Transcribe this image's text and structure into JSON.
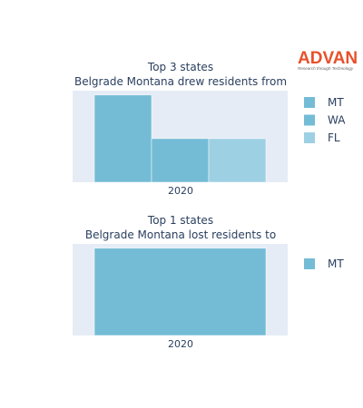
{
  "brand": {
    "name": "ADVAN",
    "tagline": "Research through Technology",
    "color": "#e8502a"
  },
  "colors": {
    "plot_bg": "#e5ecf6",
    "text": "#2a3f5f"
  },
  "chart_data": [
    {
      "type": "bar",
      "title_lines": [
        "Top 3 states",
        "Belgrade Montana drew residents from"
      ],
      "categories": [
        "2020"
      ],
      "xlabel": "",
      "ylabel": "",
      "series": [
        {
          "name": "MT",
          "values": [
            2
          ],
          "color": "#74bcd6"
        },
        {
          "name": "WA",
          "values": [
            1
          ],
          "color": "#74bcd6"
        },
        {
          "name": "FL",
          "values": [
            1
          ],
          "color": "#9ed0e4"
        }
      ],
      "ylim": [
        0,
        2.1
      ],
      "grid": false,
      "legend": "right"
    },
    {
      "type": "bar",
      "title_lines": [
        "Top 1 states",
        "Belgrade Montana lost residents to"
      ],
      "categories": [
        "2020"
      ],
      "xlabel": "",
      "ylabel": "",
      "series": [
        {
          "name": "MT",
          "values": [
            1
          ],
          "color": "#74bcd6"
        }
      ],
      "ylim": [
        0,
        1.05
      ],
      "grid": false,
      "legend": "right"
    }
  ]
}
